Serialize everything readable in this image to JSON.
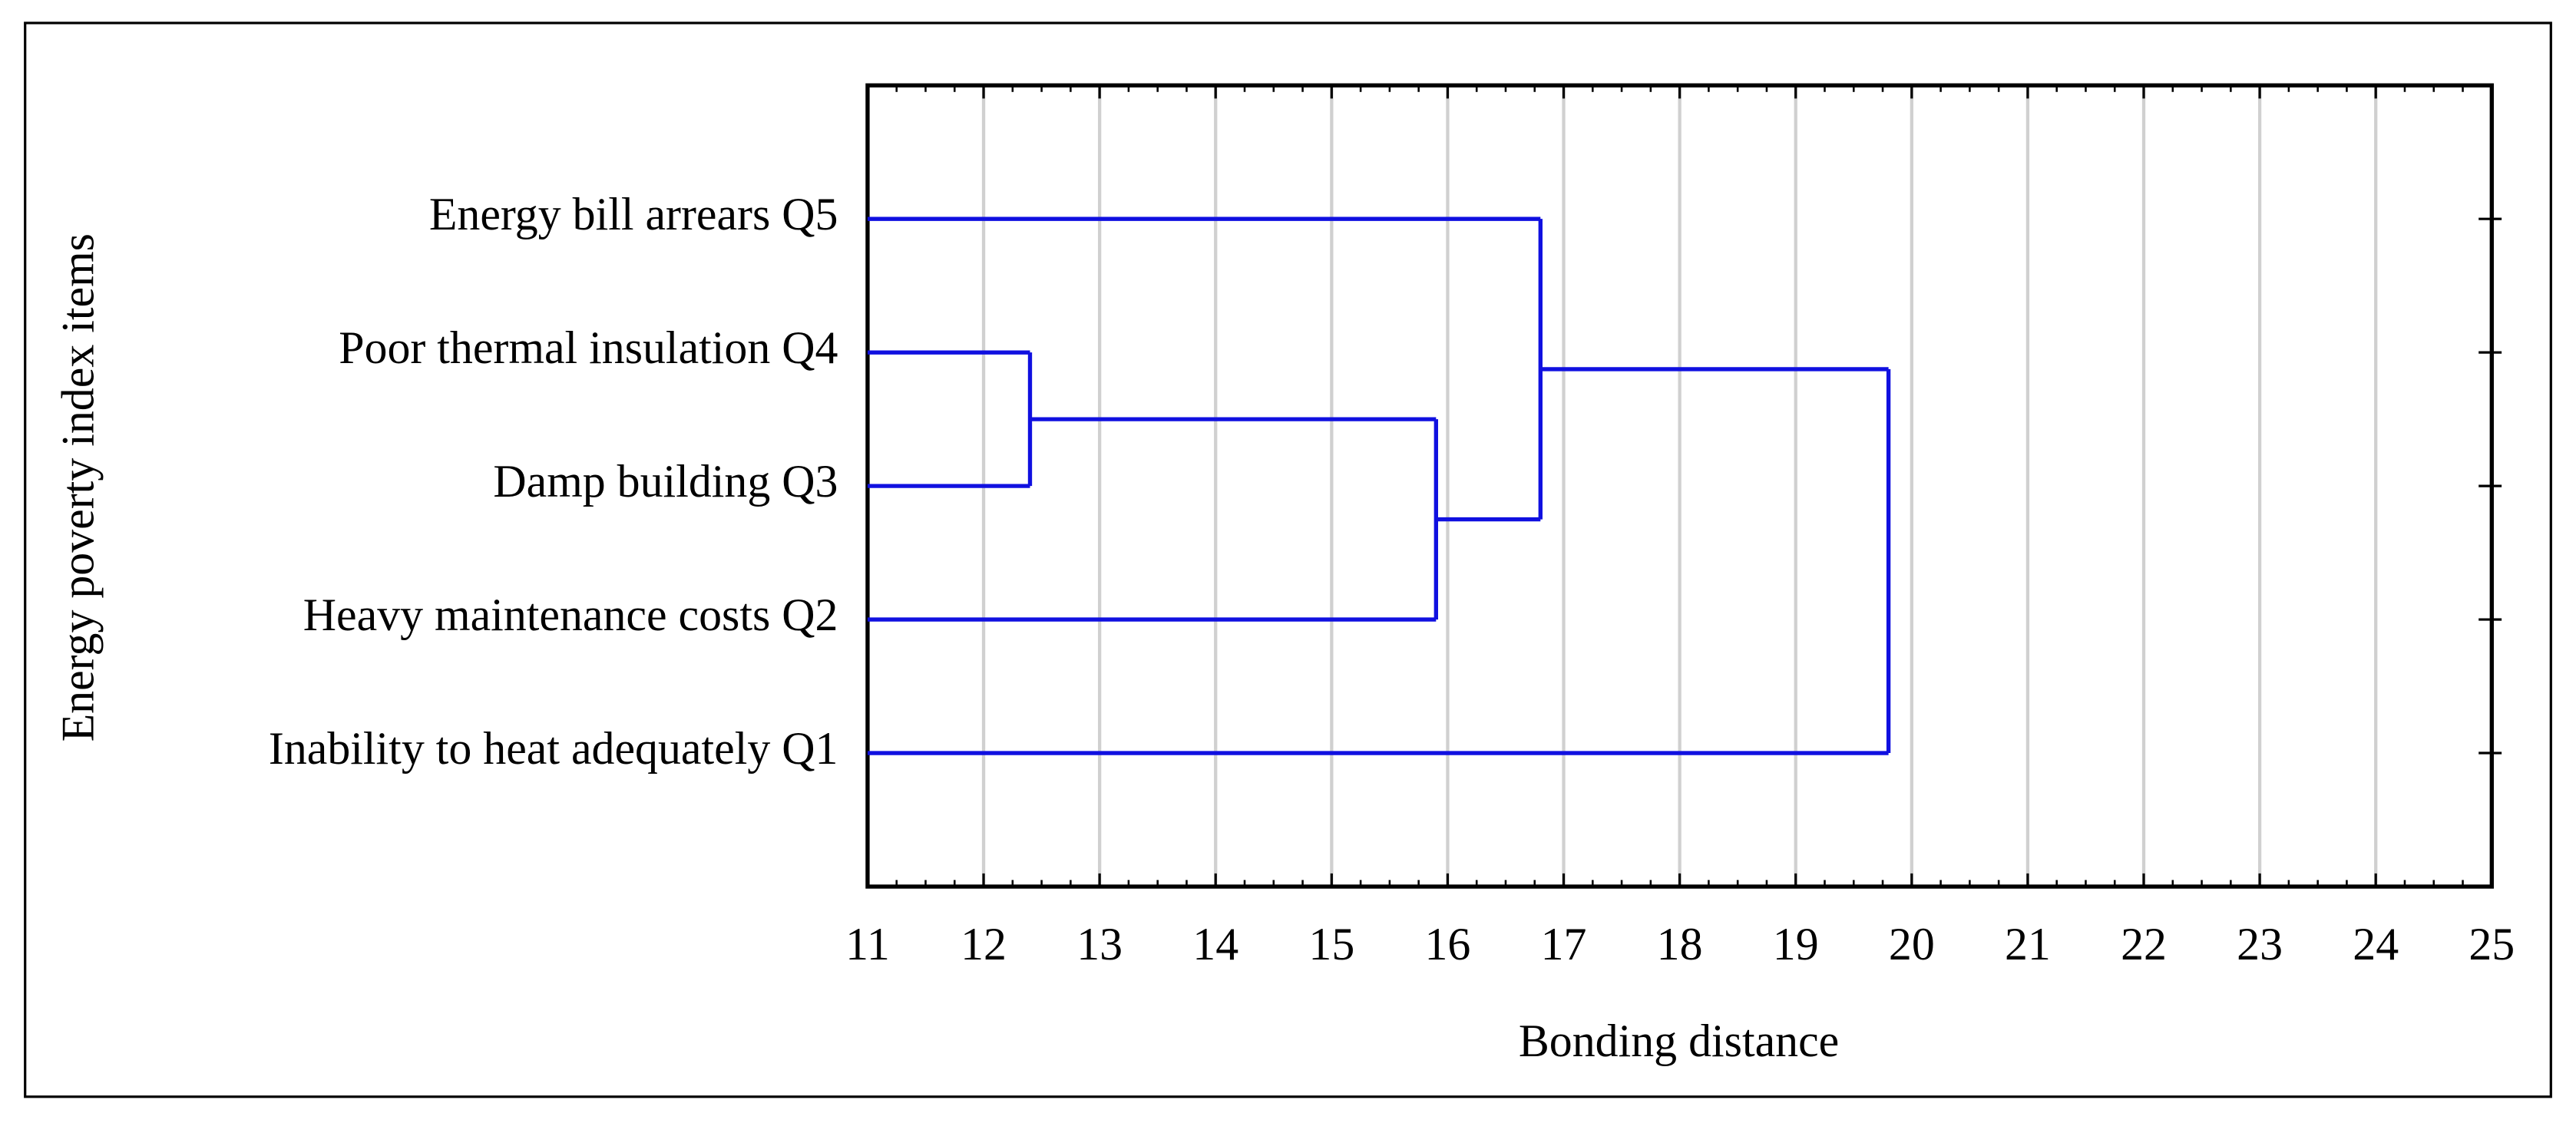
{
  "chart_data": {
    "type": "dendrogram",
    "x_label": "Bonding distance",
    "y_label": "Energy poverty index items",
    "xlim": [
      11,
      25
    ],
    "xticks": [
      11,
      12,
      13,
      14,
      15,
      16,
      17,
      18,
      19,
      20,
      21,
      22,
      23,
      24,
      25
    ],
    "grid": true,
    "color": "#1010e0",
    "tree": {
      "height": 19.8,
      "children": [
        {
          "height": 16.8,
          "children": [
            {
              "label": "Energy bill arrears Q5"
            },
            {
              "height": 15.9,
              "children": [
                {
                  "height": 12.4,
                  "children": [
                    {
                      "label": "Poor thermal insulation Q4"
                    },
                    {
                      "label": "Damp building Q3"
                    }
                  ]
                },
                {
                  "label": "Heavy maintenance costs Q2"
                }
              ]
            }
          ]
        },
        {
          "label": "Inability to heat adequately Q1"
        }
      ]
    }
  }
}
